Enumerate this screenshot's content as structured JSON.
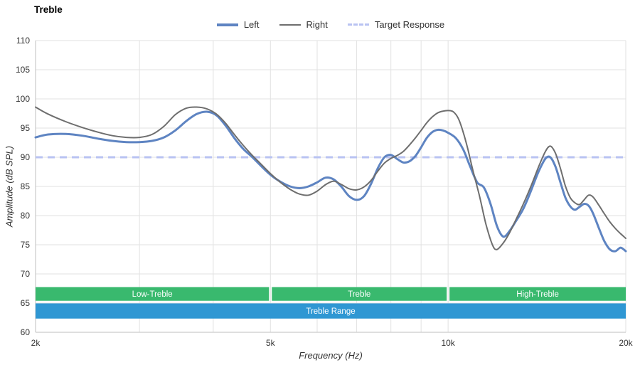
{
  "title": "Treble",
  "legend": [
    {
      "label": "Left",
      "color": "#5e84c2",
      "style": "solid",
      "weight": 4
    },
    {
      "label": "Right",
      "color": "#6e6e6e",
      "style": "solid",
      "weight": 2
    },
    {
      "label": "Target Response",
      "color": "#b9c3f2",
      "style": "dashed",
      "weight": 3
    }
  ],
  "chart_data": {
    "type": "line",
    "title": "Treble",
    "xlabel": "Frequency (Hz)",
    "ylabel": "Amplitude (dB SPL)",
    "x_scale": "log",
    "xlim": [
      2000,
      20000
    ],
    "ylim": [
      60,
      110
    ],
    "grid": true,
    "legend_position": "top-center",
    "y_ticks": [
      60,
      65,
      70,
      75,
      80,
      85,
      90,
      95,
      100,
      105,
      110
    ],
    "x_ticks": [
      {
        "f": 2000,
        "label": "2k"
      },
      {
        "f": 5000,
        "label": "5k"
      },
      {
        "f": 10000,
        "label": "10k"
      },
      {
        "f": 20000,
        "label": "20k"
      }
    ],
    "x_grid": [
      2000,
      3000,
      4000,
      5000,
      6000,
      7000,
      8000,
      9000,
      10000,
      20000
    ],
    "target_response": {
      "label": "Target Response",
      "db": 90,
      "color": "#b9c3f2"
    },
    "series": [
      {
        "name": "Left",
        "color": "#5e84c2",
        "width": 3,
        "points": [
          [
            2000,
            93.4
          ],
          [
            2100,
            93.9
          ],
          [
            2250,
            94.0
          ],
          [
            2400,
            93.7
          ],
          [
            2550,
            93.2
          ],
          [
            2700,
            92.8
          ],
          [
            2850,
            92.6
          ],
          [
            3000,
            92.6
          ],
          [
            3150,
            92.8
          ],
          [
            3300,
            93.4
          ],
          [
            3450,
            94.6
          ],
          [
            3600,
            96.2
          ],
          [
            3750,
            97.4
          ],
          [
            3900,
            97.8
          ],
          [
            4050,
            97.2
          ],
          [
            4200,
            95.4
          ],
          [
            4350,
            93.2
          ],
          [
            4500,
            91.4
          ],
          [
            4650,
            90.1
          ],
          [
            4800,
            88.7
          ],
          [
            5000,
            87.0
          ],
          [
            5200,
            85.8
          ],
          [
            5400,
            85.0
          ],
          [
            5600,
            84.7
          ],
          [
            5800,
            85.0
          ],
          [
            6000,
            85.7
          ],
          [
            6200,
            86.5
          ],
          [
            6400,
            86.2
          ],
          [
            6600,
            84.9
          ],
          [
            6800,
            83.3
          ],
          [
            7000,
            82.7
          ],
          [
            7200,
            83.3
          ],
          [
            7400,
            85.4
          ],
          [
            7600,
            88.1
          ],
          [
            7800,
            90.0
          ],
          [
            8000,
            90.4
          ],
          [
            8200,
            89.7
          ],
          [
            8400,
            89.1
          ],
          [
            8600,
            89.3
          ],
          [
            8800,
            90.2
          ],
          [
            9000,
            91.7
          ],
          [
            9200,
            93.3
          ],
          [
            9400,
            94.3
          ],
          [
            9600,
            94.7
          ],
          [
            9800,
            94.6
          ],
          [
            10000,
            94.2
          ],
          [
            10300,
            93.3
          ],
          [
            10600,
            91.4
          ],
          [
            10900,
            88.4
          ],
          [
            11200,
            85.7
          ],
          [
            11500,
            84.8
          ],
          [
            11800,
            82.0
          ],
          [
            12100,
            78.2
          ],
          [
            12400,
            76.4
          ],
          [
            12700,
            77.3
          ],
          [
            13000,
            78.9
          ],
          [
            13400,
            81.1
          ],
          [
            13800,
            84.1
          ],
          [
            14200,
            87.3
          ],
          [
            14600,
            89.7
          ],
          [
            14900,
            90.0
          ],
          [
            15200,
            88.4
          ],
          [
            15500,
            85.7
          ],
          [
            15800,
            83.1
          ],
          [
            16100,
            81.6
          ],
          [
            16400,
            81.0
          ],
          [
            16700,
            81.5
          ],
          [
            17000,
            82.0
          ],
          [
            17300,
            81.7
          ],
          [
            17600,
            80.4
          ],
          [
            18000,
            77.9
          ],
          [
            18400,
            75.6
          ],
          [
            18800,
            74.2
          ],
          [
            19200,
            73.9
          ],
          [
            19600,
            74.5
          ],
          [
            20000,
            73.9
          ]
        ]
      },
      {
        "name": "Right",
        "color": "#6e6e6e",
        "width": 2,
        "points": [
          [
            2000,
            98.6
          ],
          [
            2100,
            97.4
          ],
          [
            2250,
            96.1
          ],
          [
            2400,
            95.1
          ],
          [
            2550,
            94.3
          ],
          [
            2700,
            93.7
          ],
          [
            2850,
            93.4
          ],
          [
            3000,
            93.4
          ],
          [
            3150,
            93.9
          ],
          [
            3300,
            95.3
          ],
          [
            3450,
            97.3
          ],
          [
            3600,
            98.4
          ],
          [
            3750,
            98.6
          ],
          [
            3900,
            98.3
          ],
          [
            4050,
            97.4
          ],
          [
            4200,
            95.8
          ],
          [
            4350,
            93.8
          ],
          [
            4500,
            92.0
          ],
          [
            4650,
            90.4
          ],
          [
            4800,
            89.0
          ],
          [
            5000,
            87.2
          ],
          [
            5200,
            85.7
          ],
          [
            5400,
            84.5
          ],
          [
            5600,
            83.7
          ],
          [
            5800,
            83.5
          ],
          [
            6000,
            84.2
          ],
          [
            6200,
            85.3
          ],
          [
            6400,
            85.9
          ],
          [
            6600,
            85.3
          ],
          [
            6800,
            84.6
          ],
          [
            7000,
            84.4
          ],
          [
            7200,
            84.9
          ],
          [
            7400,
            86.0
          ],
          [
            7600,
            87.6
          ],
          [
            7800,
            89.0
          ],
          [
            8000,
            89.8
          ],
          [
            8200,
            90.3
          ],
          [
            8400,
            91.0
          ],
          [
            8600,
            92.1
          ],
          [
            8800,
            93.3
          ],
          [
            9000,
            94.6
          ],
          [
            9200,
            95.9
          ],
          [
            9400,
            96.9
          ],
          [
            9600,
            97.6
          ],
          [
            9800,
            97.9
          ],
          [
            10000,
            98.0
          ],
          [
            10200,
            97.8
          ],
          [
            10400,
            96.7
          ],
          [
            10600,
            94.4
          ],
          [
            10800,
            91.4
          ],
          [
            11000,
            88.0
          ],
          [
            11300,
            83.4
          ],
          [
            11600,
            78.4
          ],
          [
            11900,
            74.9
          ],
          [
            12100,
            74.2
          ],
          [
            12400,
            75.3
          ],
          [
            12700,
            77.0
          ],
          [
            13000,
            79.1
          ],
          [
            13400,
            81.9
          ],
          [
            13800,
            84.9
          ],
          [
            14200,
            88.1
          ],
          [
            14600,
            90.9
          ],
          [
            14900,
            91.9
          ],
          [
            15200,
            90.7
          ],
          [
            15500,
            88.1
          ],
          [
            15800,
            85.1
          ],
          [
            16100,
            83.1
          ],
          [
            16400,
            82.2
          ],
          [
            16700,
            81.9
          ],
          [
            17000,
            82.7
          ],
          [
            17300,
            83.5
          ],
          [
            17600,
            83.2
          ],
          [
            18000,
            81.8
          ],
          [
            18400,
            80.3
          ],
          [
            18800,
            78.9
          ],
          [
            19200,
            77.8
          ],
          [
            19600,
            76.9
          ],
          [
            20000,
            76.1
          ]
        ]
      }
    ],
    "bands": {
      "zone_color": "#39b96e",
      "range_color": "#2f97d3",
      "zones": [
        {
          "label": "Low-Treble",
          "from": 2000,
          "to": 5000
        },
        {
          "label": "Treble",
          "from": 5000,
          "to": 10000
        },
        {
          "label": "High-Treble",
          "from": 10000,
          "to": 20000
        }
      ],
      "range": {
        "label": "Treble Range",
        "from": 2000,
        "to": 20000
      }
    }
  }
}
